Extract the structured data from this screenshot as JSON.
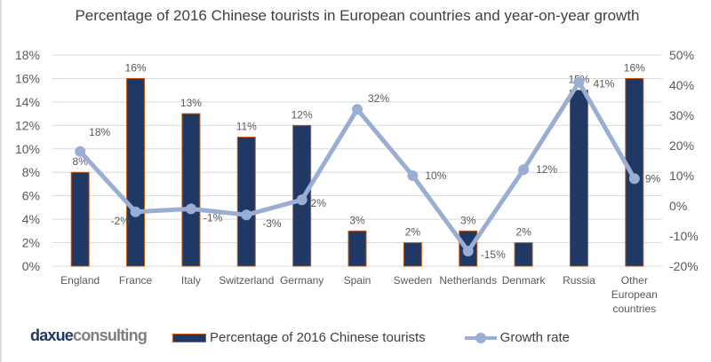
{
  "chart_data": {
    "type": "bar+line",
    "title": "Percentage of 2016 Chinese tourists in European countries and year-on-year growth",
    "categories": [
      "England",
      "France",
      "Italy",
      "Switzerland",
      "Germany",
      "Spain",
      "Sweden",
      "Netherlands",
      "Denmark",
      "Russia",
      "Other European countries"
    ],
    "series": [
      {
        "name": "Percentage of 2016 Chinese tourists",
        "type": "bar",
        "axis": "left",
        "values": [
          8,
          16,
          13,
          11,
          12,
          3,
          2,
          3,
          2,
          15,
          16
        ],
        "color": "#1f3864",
        "border": "#c55a11"
      },
      {
        "name": "Growth rate",
        "type": "line",
        "axis": "right",
        "values": [
          18,
          -2,
          -1,
          -3,
          2,
          32,
          10,
          -15,
          12,
          41,
          9
        ],
        "color": "#9aaed4"
      }
    ],
    "y_left": {
      "min": 0,
      "max": 18,
      "step": 2,
      "ticks": [
        "0%",
        "2%",
        "4%",
        "6%",
        "8%",
        "10%",
        "12%",
        "14%",
        "16%",
        "18%"
      ]
    },
    "y_right": {
      "min": -20,
      "max": 50,
      "step": 10,
      "ticks": [
        "-20%",
        "-10%",
        "0%",
        "10%",
        "20%",
        "30%",
        "40%",
        "50%"
      ]
    },
    "grid": true,
    "legend": "bottom"
  },
  "logo": {
    "part1": "daxue",
    "part2": "consulting"
  }
}
